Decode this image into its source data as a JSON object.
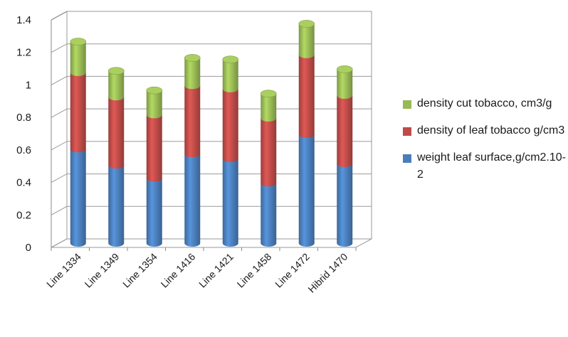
{
  "chart_data": {
    "type": "bar",
    "stacked": true,
    "three_d": true,
    "categories": [
      "Line 1334",
      "Line 1349",
      "Line 1354",
      "Line 1416",
      "Line 1421",
      "Line 1458",
      "Line 1472",
      "Hibrid 1470"
    ],
    "series": [
      {
        "name": "weight leaf surface,g/cm2.10-2",
        "color": "#4a7ebb",
        "values": [
          0.58,
          0.48,
          0.4,
          0.55,
          0.52,
          0.37,
          0.67,
          0.49
        ]
      },
      {
        "name": "density of leaf tobacco g/cm3",
        "color": "#be4b48",
        "values": [
          0.47,
          0.42,
          0.39,
          0.42,
          0.43,
          0.4,
          0.49,
          0.42
        ]
      },
      {
        "name": "density cut tobacco, cm3/g",
        "color": "#98b954",
        "values": [
          0.19,
          0.16,
          0.15,
          0.17,
          0.18,
          0.15,
          0.19,
          0.16
        ]
      }
    ],
    "ylim": [
      0,
      1.4
    ],
    "yticks": [
      "0",
      "0.2",
      "0.4",
      "0.6",
      "0.8",
      "1",
      "1.2",
      "1.4"
    ],
    "grid": true,
    "legend_position": "right",
    "legend_order": [
      "density cut tobacco, cm3/g",
      "density of leaf tobacco g/cm3",
      "weight leaf surface,g/cm2.10-2"
    ]
  }
}
